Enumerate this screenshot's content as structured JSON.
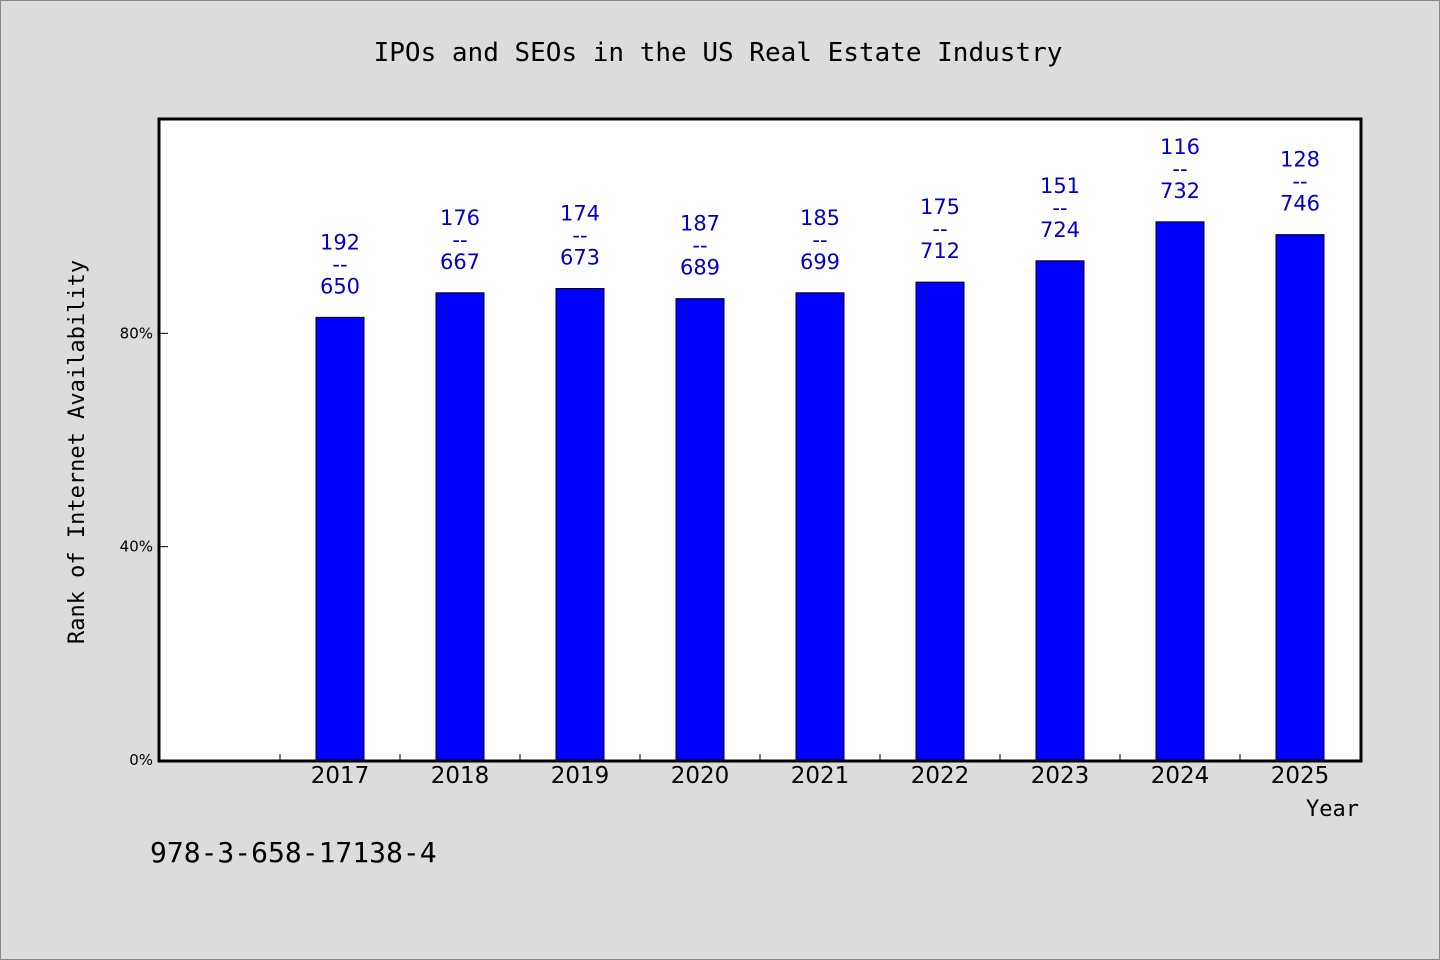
{
  "chart_data": {
    "type": "bar",
    "title": "IPOs and SEOs in the US Real Estate Industry",
    "xlabel": "Year",
    "ylabel": "Rank of Internet Availability",
    "categories": [
      "2017",
      "2018",
      "2019",
      "2020",
      "2021",
      "2022",
      "2023",
      "2024",
      "2025"
    ],
    "series": [
      {
        "values": [
          83.0,
          87.6,
          88.4,
          86.5,
          87.6,
          89.6,
          93.6,
          100.9,
          98.5
        ],
        "labels": [
          [
            "192",
            "--",
            "650"
          ],
          [
            "176",
            "--",
            "667"
          ],
          [
            "174",
            "--",
            "673"
          ],
          [
            "187",
            "--",
            "689"
          ],
          [
            "185",
            "--",
            "699"
          ],
          [
            "175",
            "--",
            "712"
          ],
          [
            "151",
            "--",
            "724"
          ],
          [
            "116",
            "--",
            "732"
          ],
          [
            "128",
            "--",
            "746"
          ]
        ]
      }
    ],
    "yticks": [
      {
        "value": 0,
        "label": "0%"
      },
      {
        "value": 40,
        "label": "40%"
      },
      {
        "value": 80,
        "label": "80%"
      }
    ],
    "ylim": [
      0,
      120
    ],
    "grid": false,
    "bar_color": "#0000ff",
    "label_color": "#0000cc"
  },
  "footer_text": "978-3-658-17138-4"
}
